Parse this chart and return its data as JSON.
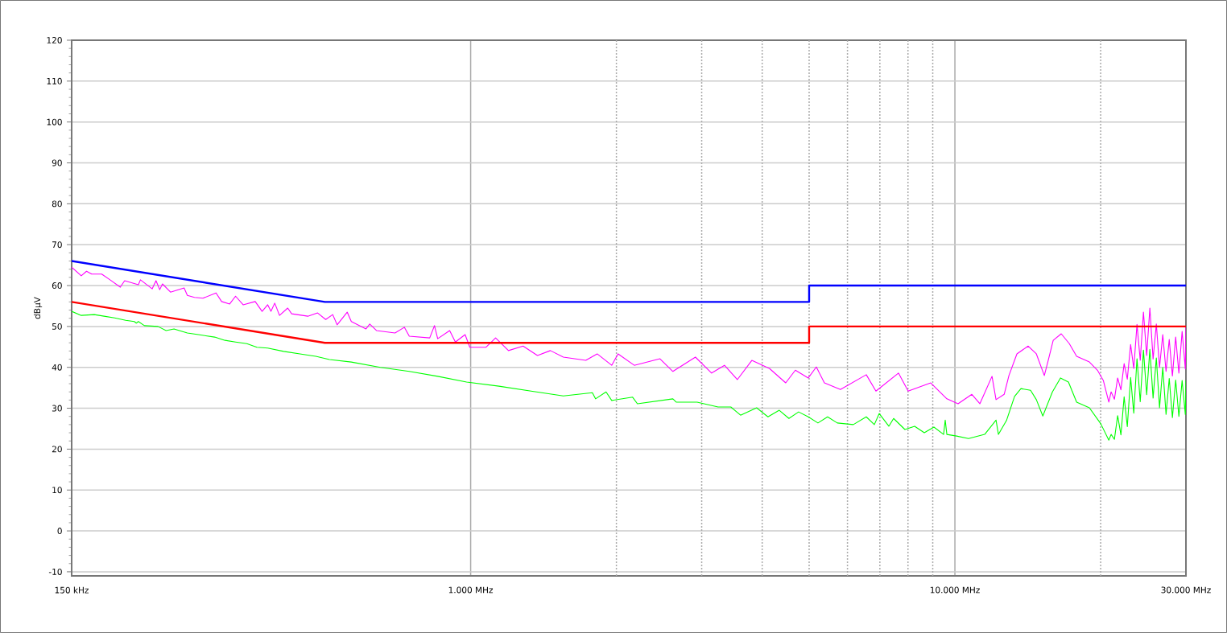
{
  "chart_data": {
    "type": "line",
    "ylabel": "dBµV",
    "log": "x",
    "grid": true,
    "xlim": [
      150,
      30000
    ],
    "ylim": [
      -11,
      120
    ],
    "xticks": [
      {
        "value": 150,
        "label": "150 kHz"
      },
      {
        "value": 1000,
        "label": "1.000 MHz"
      },
      {
        "value": 2000,
        "label": null
      },
      {
        "value": 3000,
        "label": null
      },
      {
        "value": 4000,
        "label": null
      },
      {
        "value": 5000,
        "label": null
      },
      {
        "value": 6000,
        "label": null
      },
      {
        "value": 7000,
        "label": null
      },
      {
        "value": 8000,
        "label": null
      },
      {
        "value": 9000,
        "label": null
      },
      {
        "value": 10000,
        "label": "10.000 MHz"
      },
      {
        "value": 20000,
        "label": null
      },
      {
        "value": 30000,
        "label": "30.000 MHz"
      }
    ],
    "yticks": [
      -10,
      0,
      10,
      20,
      30,
      40,
      50,
      60,
      70,
      80,
      90,
      100,
      110,
      120
    ],
    "series": [
      {
        "color": "#ff00ff",
        "x": [
          150,
          157,
          161,
          165,
          173,
          180,
          189,
          193,
          206,
          208,
          220,
          224,
          228,
          231,
          240,
          256,
          260,
          269,
          280,
          298,
          306,
          318,
          327,
          339,
          359,
          371,
          381,
          387,
          394,
          403,
          419,
          427,
          461,
          483,
          502,
          519,
          530,
          556,
          567,
          608,
          619,
          639,
          698,
          730,
          747,
          823,
          842,
          855,
          905,
          930,
          974,
          996,
          1075,
          1126,
          1197,
          1283,
          1374,
          1461,
          1554,
          1729,
          1825,
          1956,
          2016,
          2177,
          2460,
          2616,
          2912,
          3145,
          3343,
          3554,
          3808,
          4143,
          4473,
          4683,
          4980,
          5174,
          5376,
          5803,
          6561,
          6870,
          7647,
          8008,
          8915,
          9625,
          10150,
          10840,
          11260,
          11930,
          12160,
          12640,
          12930,
          13430,
          14170,
          14730,
          15300,
          15600,
          15960,
          16580,
          17230,
          17840,
          18960,
          19700,
          20250,
          20790,
          21020,
          21350,
          21680,
          22020,
          22360,
          22700,
          23060,
          23410,
          23770,
          24140,
          24510,
          24890,
          25270,
          25660,
          26060,
          26460,
          26870,
          27290,
          27710,
          28130,
          28570,
          29010,
          29460,
          29910,
          30000
        ],
        "values": [
          64.5,
          62.4,
          63.5,
          62.8,
          62.8,
          61.4,
          59.6,
          61.2,
          60.2,
          61.4,
          59.2,
          61.2,
          59.0,
          60.4,
          58.4,
          59.4,
          57.6,
          57.1,
          56.9,
          58.2,
          56.1,
          55.5,
          57.4,
          55.3,
          56.1,
          53.7,
          55.3,
          53.7,
          55.7,
          52.7,
          54.5,
          53.1,
          52.5,
          53.3,
          51.7,
          52.9,
          50.4,
          53.5,
          51.2,
          49.4,
          50.6,
          49.0,
          48.4,
          49.8,
          47.6,
          47.2,
          50.2,
          47.0,
          49.0,
          46.2,
          48.0,
          44.9,
          44.9,
          47.2,
          44.1,
          45.2,
          42.9,
          44.1,
          42.5,
          41.7,
          43.3,
          40.5,
          43.3,
          40.5,
          42.1,
          39.0,
          42.5,
          38.6,
          40.5,
          37.0,
          41.7,
          39.7,
          36.2,
          39.3,
          37.4,
          40.1,
          36.2,
          34.6,
          38.2,
          34.2,
          38.6,
          34.2,
          36.2,
          32.3,
          31.1,
          33.4,
          31.1,
          37.8,
          32.1,
          33.4,
          38.0,
          43.3,
          45.2,
          43.3,
          38.0,
          41.9,
          46.6,
          48.2,
          45.8,
          42.7,
          41.3,
          39.3,
          36.8,
          31.5,
          34.0,
          32.2,
          37.4,
          34.5,
          40.9,
          37.1,
          45.6,
          39.7,
          50.5,
          41.7,
          53.5,
          42.9,
          54.5,
          42.0,
          50.6,
          40.0,
          48.0,
          39.0,
          46.8,
          37.9,
          47.4,
          38.6,
          48.8,
          39.6,
          49.8
        ]
      },
      {
        "color": "#00ff00",
        "x": [
          150,
          157,
          167,
          175,
          184,
          194,
          202,
          204,
          206,
          212,
          226,
          235,
          244,
          260,
          274,
          296,
          311,
          327,
          345,
          362,
          381,
          411,
          444,
          479,
          511,
          567,
          651,
          747,
          855,
          981,
          1144,
          1333,
          1554,
          1784,
          1811,
          1904,
          1956,
          2160,
          2210,
          2616,
          2657,
          2935,
          3243,
          3446,
          3609,
          3896,
          4111,
          4338,
          4542,
          4756,
          4980,
          5214,
          5459,
          5717,
          6170,
          6561,
          6818,
          6977,
          7305,
          7472,
          7886,
          8257,
          8646,
          9052,
          9478,
          9550,
          9625,
          10080,
          10670,
          11520,
          12160,
          12300,
          12780,
          13280,
          13690,
          14330,
          14730,
          15190,
          15900,
          16520,
          17160,
          17840,
          18960,
          20010,
          20790,
          21020,
          21350,
          21680,
          22020,
          22360,
          22700,
          23060,
          23410,
          23770,
          24140,
          24510,
          24890,
          25270,
          25660,
          26060,
          26460,
          26870,
          27290,
          27710,
          28130,
          28570,
          29010,
          29460,
          29910,
          30000
        ],
        "values": [
          53.7,
          52.7,
          52.9,
          52.5,
          52.1,
          51.5,
          51.2,
          50.8,
          51.2,
          50.2,
          50.0,
          49.0,
          49.4,
          48.4,
          48.0,
          47.4,
          46.6,
          46.2,
          45.8,
          44.9,
          44.7,
          43.9,
          43.3,
          42.7,
          41.9,
          41.3,
          40.0,
          39.0,
          37.8,
          36.4,
          35.4,
          34.2,
          33.0,
          33.8,
          32.3,
          34.0,
          31.9,
          32.7,
          31.1,
          32.3,
          31.5,
          31.5,
          30.3,
          30.3,
          28.3,
          30.1,
          27.9,
          29.5,
          27.5,
          29.1,
          27.9,
          26.4,
          27.9,
          26.4,
          26.0,
          27.9,
          26.0,
          28.7,
          25.6,
          27.5,
          24.8,
          25.6,
          24.0,
          25.4,
          23.6,
          27.1,
          23.6,
          23.2,
          22.6,
          23.6,
          27.1,
          23.6,
          27.0,
          32.9,
          34.8,
          34.4,
          32.1,
          28.1,
          34.0,
          37.4,
          36.4,
          31.5,
          30.1,
          26.2,
          22.2,
          23.6,
          22.4,
          28.2,
          23.5,
          32.8,
          25.5,
          37.5,
          28.8,
          42.1,
          31.6,
          44.2,
          33.3,
          44.4,
          32.5,
          42.3,
          30.1,
          40.0,
          28.5,
          37.3,
          27.7,
          36.9,
          28.0,
          36.8,
          28.5,
          36.8
        ]
      },
      {
        "color": "#0000ff",
        "x": [
          150,
          500,
          5000,
          5000,
          30000
        ],
        "values": [
          66,
          56,
          56,
          60,
          60
        ]
      },
      {
        "color": "#ff0000",
        "x": [
          150,
          500,
          5000,
          5000,
          30000
        ],
        "values": [
          56,
          46,
          46,
          50,
          50
        ]
      }
    ]
  }
}
